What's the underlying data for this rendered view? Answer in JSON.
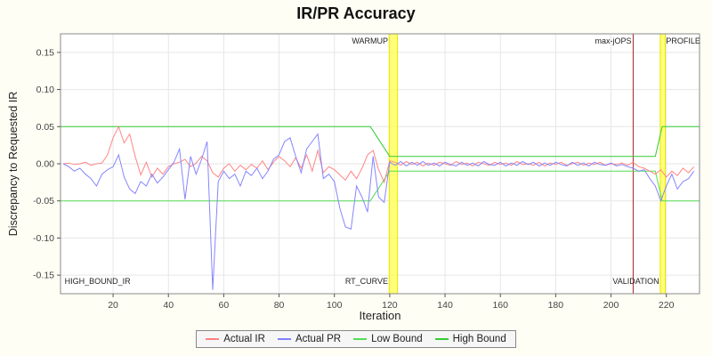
{
  "title": "IR/PR Accuracy",
  "axes": {
    "x_label": "Iteration",
    "y_label": "Discrepancy to Requested IR"
  },
  "legend": {
    "items": [
      {
        "label": "Actual IR",
        "color": "#ff8080"
      },
      {
        "label": "Actual PR",
        "color": "#8080ff"
      },
      {
        "label": "Low Bound",
        "color": "#55dd55"
      },
      {
        "label": "High Bound",
        "color": "#33cc33"
      }
    ]
  },
  "chart_data": {
    "type": "line",
    "title": "IR/PR Accuracy",
    "xlabel": "Iteration",
    "ylabel": "Discrepancy to Requested IR",
    "x_range": [
      1,
      232
    ],
    "y_range": [
      -0.175,
      0.175
    ],
    "x_ticks": [
      20,
      40,
      60,
      80,
      100,
      120,
      140,
      160,
      180,
      200,
      220
    ],
    "y_ticks": [
      -0.15,
      -0.1,
      -0.05,
      0,
      0.05,
      0.1,
      0.15
    ],
    "x_start": 2,
    "x_step": 2,
    "series": [
      {
        "name": "Actual IR",
        "color": "#ff8080",
        "values": [
          0.0,
          0.001,
          -0.001,
          0.0,
          0.002,
          -0.002,
          0.0,
          0.001,
          0.012,
          0.035,
          0.05,
          0.028,
          0.04,
          0.01,
          -0.015,
          0.002,
          -0.018,
          -0.006,
          -0.014,
          -0.004,
          0.0,
          0.002,
          0.006,
          -0.004,
          0.001,
          0.01,
          0.004,
          -0.012,
          -0.018,
          -0.006,
          0.0,
          -0.01,
          -0.002,
          -0.008,
          -0.001,
          -0.006,
          0.004,
          -0.008,
          0.002,
          0.01,
          0.004,
          -0.004,
          0.008,
          -0.006,
          0.012,
          -0.01,
          0.018,
          -0.012,
          -0.004,
          -0.008,
          -0.015,
          -0.022,
          -0.01,
          -0.02,
          -0.006,
          0.012,
          0.018,
          -0.008,
          -0.025,
          0.004,
          0.002,
          -0.002,
          0.003,
          -0.001,
          0.002,
          -0.003,
          0.001,
          -0.002,
          0.002,
          0.0,
          -0.002,
          0.003,
          -0.001,
          0.001,
          -0.003,
          0.002,
          0.0,
          -0.002,
          0.002,
          -0.001,
          0.001,
          -0.002,
          0.003,
          -0.001,
          0.0,
          -0.002,
          0.002,
          -0.003,
          0.001,
          -0.001,
          0.002,
          -0.002,
          0.0,
          0.002,
          -0.002,
          0.001,
          -0.001,
          0.002,
          -0.002,
          0.0,
          -0.001,
          0.001,
          -0.002,
          0.002,
          -0.004,
          -0.006,
          -0.01,
          -0.014,
          -0.008,
          -0.018,
          -0.01,
          -0.016,
          -0.006,
          -0.012,
          -0.004
        ]
      },
      {
        "name": "Actual PR",
        "color": "#8080ff",
        "values": [
          0.0,
          -0.004,
          -0.01,
          -0.006,
          -0.014,
          -0.02,
          -0.03,
          -0.014,
          -0.008,
          -0.004,
          0.012,
          -0.018,
          -0.034,
          -0.04,
          -0.024,
          -0.03,
          -0.014,
          -0.026,
          -0.018,
          -0.008,
          0.002,
          0.02,
          -0.048,
          0.01,
          -0.014,
          0.006,
          0.03,
          -0.17,
          -0.024,
          -0.01,
          -0.02,
          -0.014,
          -0.03,
          -0.01,
          -0.016,
          -0.006,
          -0.02,
          -0.01,
          0.006,
          0.012,
          0.03,
          0.035,
          0.01,
          -0.012,
          0.02,
          0.03,
          0.04,
          -0.02,
          -0.014,
          -0.024,
          -0.06,
          -0.085,
          -0.088,
          -0.03,
          -0.045,
          -0.065,
          0.01,
          -0.045,
          -0.052,
          0.002,
          -0.002,
          0.003,
          -0.003,
          0.002,
          -0.002,
          0.003,
          -0.002,
          0.001,
          -0.003,
          0.002,
          -0.001,
          -0.003,
          0.002,
          -0.002,
          0.001,
          -0.003,
          0.003,
          -0.001,
          -0.002,
          0.002,
          -0.003,
          0.001,
          -0.002,
          0.003,
          -0.001,
          0.002,
          -0.003,
          0.001,
          -0.002,
          0.002,
          -0.001,
          -0.003,
          0.002,
          -0.002,
          0.001,
          -0.003,
          0.002,
          -0.001,
          -0.002,
          0.001,
          -0.003,
          -0.001,
          -0.004,
          -0.006,
          -0.01,
          -0.008,
          -0.02,
          -0.03,
          -0.05,
          -0.03,
          -0.014,
          -0.034,
          -0.024,
          -0.02,
          -0.01
        ]
      }
    ],
    "bound_series": [
      {
        "name": "Low Bound",
        "color": "#55dd55",
        "points": [
          [
            1,
            -0.05
          ],
          [
            113,
            -0.05
          ],
          [
            120,
            -0.01
          ],
          [
            216,
            -0.01
          ],
          [
            218.5,
            -0.05
          ],
          [
            232,
            -0.05
          ]
        ]
      },
      {
        "name": "High Bound",
        "color": "#33cc33",
        "points": [
          [
            1,
            0.05
          ],
          [
            113,
            0.05
          ],
          [
            120,
            0.01
          ],
          [
            216,
            0.01
          ],
          [
            218.5,
            0.05
          ],
          [
            232,
            0.05
          ]
        ]
      }
    ],
    "bands": [
      {
        "x1": 119.8,
        "x2": 122.8,
        "fill": "#ffff55"
      },
      {
        "x1": 217.8,
        "x2": 219.6,
        "fill": "#ffff55"
      }
    ],
    "vlines": [
      {
        "x": 208,
        "color": "#aa2222"
      }
    ],
    "annotations": [
      {
        "text": "WARMUP",
        "x": 119.4,
        "y": 0.162,
        "anchor": "end"
      },
      {
        "text": "max-jOPS",
        "x": 207.4,
        "y": 0.162,
        "anchor": "end"
      },
      {
        "text": "PROFILE",
        "x": 219.9,
        "y": 0.162,
        "anchor": "start"
      },
      {
        "text": "HIGH_BOUND_IR",
        "x": 2.5,
        "y": -0.162,
        "anchor": "start"
      },
      {
        "text": "RT_CURVE",
        "x": 119.4,
        "y": -0.162,
        "anchor": "end"
      },
      {
        "text": "VALIDATION",
        "x": 217.4,
        "y": -0.162,
        "anchor": "end"
      }
    ],
    "legend_position": "bottom",
    "grid": true
  }
}
